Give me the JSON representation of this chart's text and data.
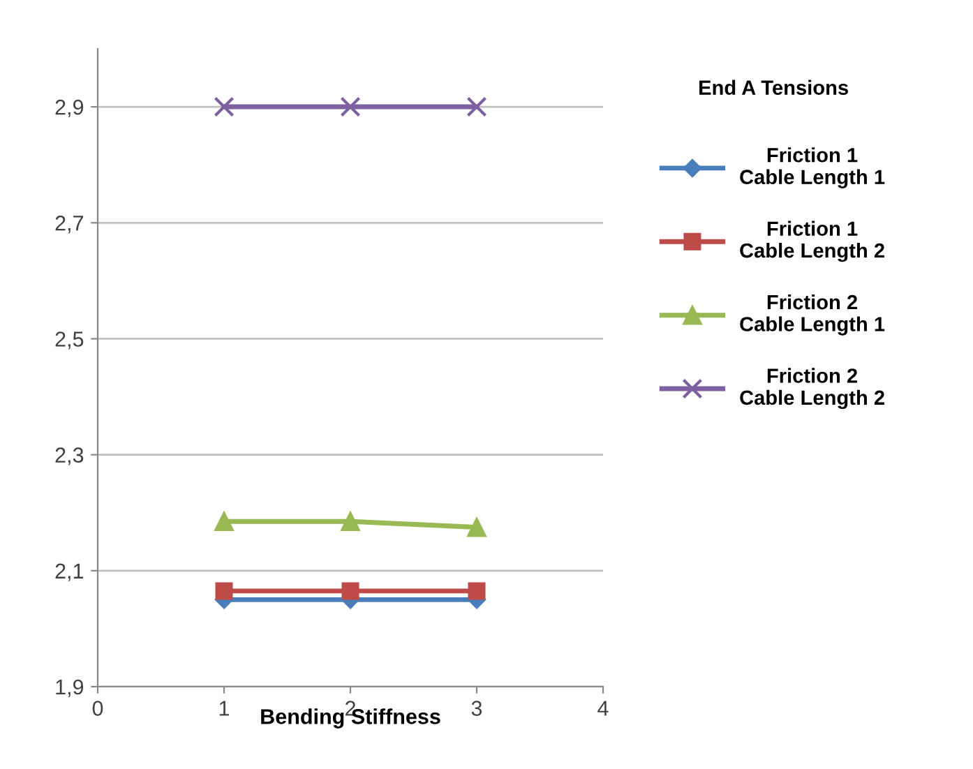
{
  "chart_data": {
    "type": "line",
    "xlabel": "Bending Stiffness",
    "legend_title": "End A Tensions",
    "legend": "right",
    "grid": "y",
    "x": [
      1,
      2,
      3
    ],
    "xlim": [
      0,
      4
    ],
    "xticks": [
      0,
      1,
      2,
      3,
      4
    ],
    "ylim": [
      1.9,
      3.0
    ],
    "yticks": [
      {
        "value": 1.9,
        "label": "1,9"
      },
      {
        "value": 2.1,
        "label": "2,1"
      },
      {
        "value": 2.3,
        "label": "2,3"
      },
      {
        "value": 2.5,
        "label": "2,5"
      },
      {
        "value": 2.7,
        "label": "2,7"
      },
      {
        "value": 2.9,
        "label": "2,9"
      }
    ],
    "series": [
      {
        "name": "Friction 1\nCable Length 1",
        "color": "#4a7ebb",
        "marker": "diamond",
        "values": [
          2.05,
          2.05,
          2.05
        ]
      },
      {
        "name": "Friction 1\nCable Length 2",
        "color": "#be4b48",
        "marker": "square",
        "values": [
          2.065,
          2.065,
          2.065
        ]
      },
      {
        "name": "Friction 2\nCable Length 1",
        "color": "#98b954",
        "marker": "triangle",
        "values": [
          2.185,
          2.185,
          2.175
        ]
      },
      {
        "name": "Friction 2\nCable Length 2",
        "color": "#7d60a0",
        "marker": "cross",
        "values": [
          2.9,
          2.9,
          2.9
        ]
      }
    ]
  }
}
